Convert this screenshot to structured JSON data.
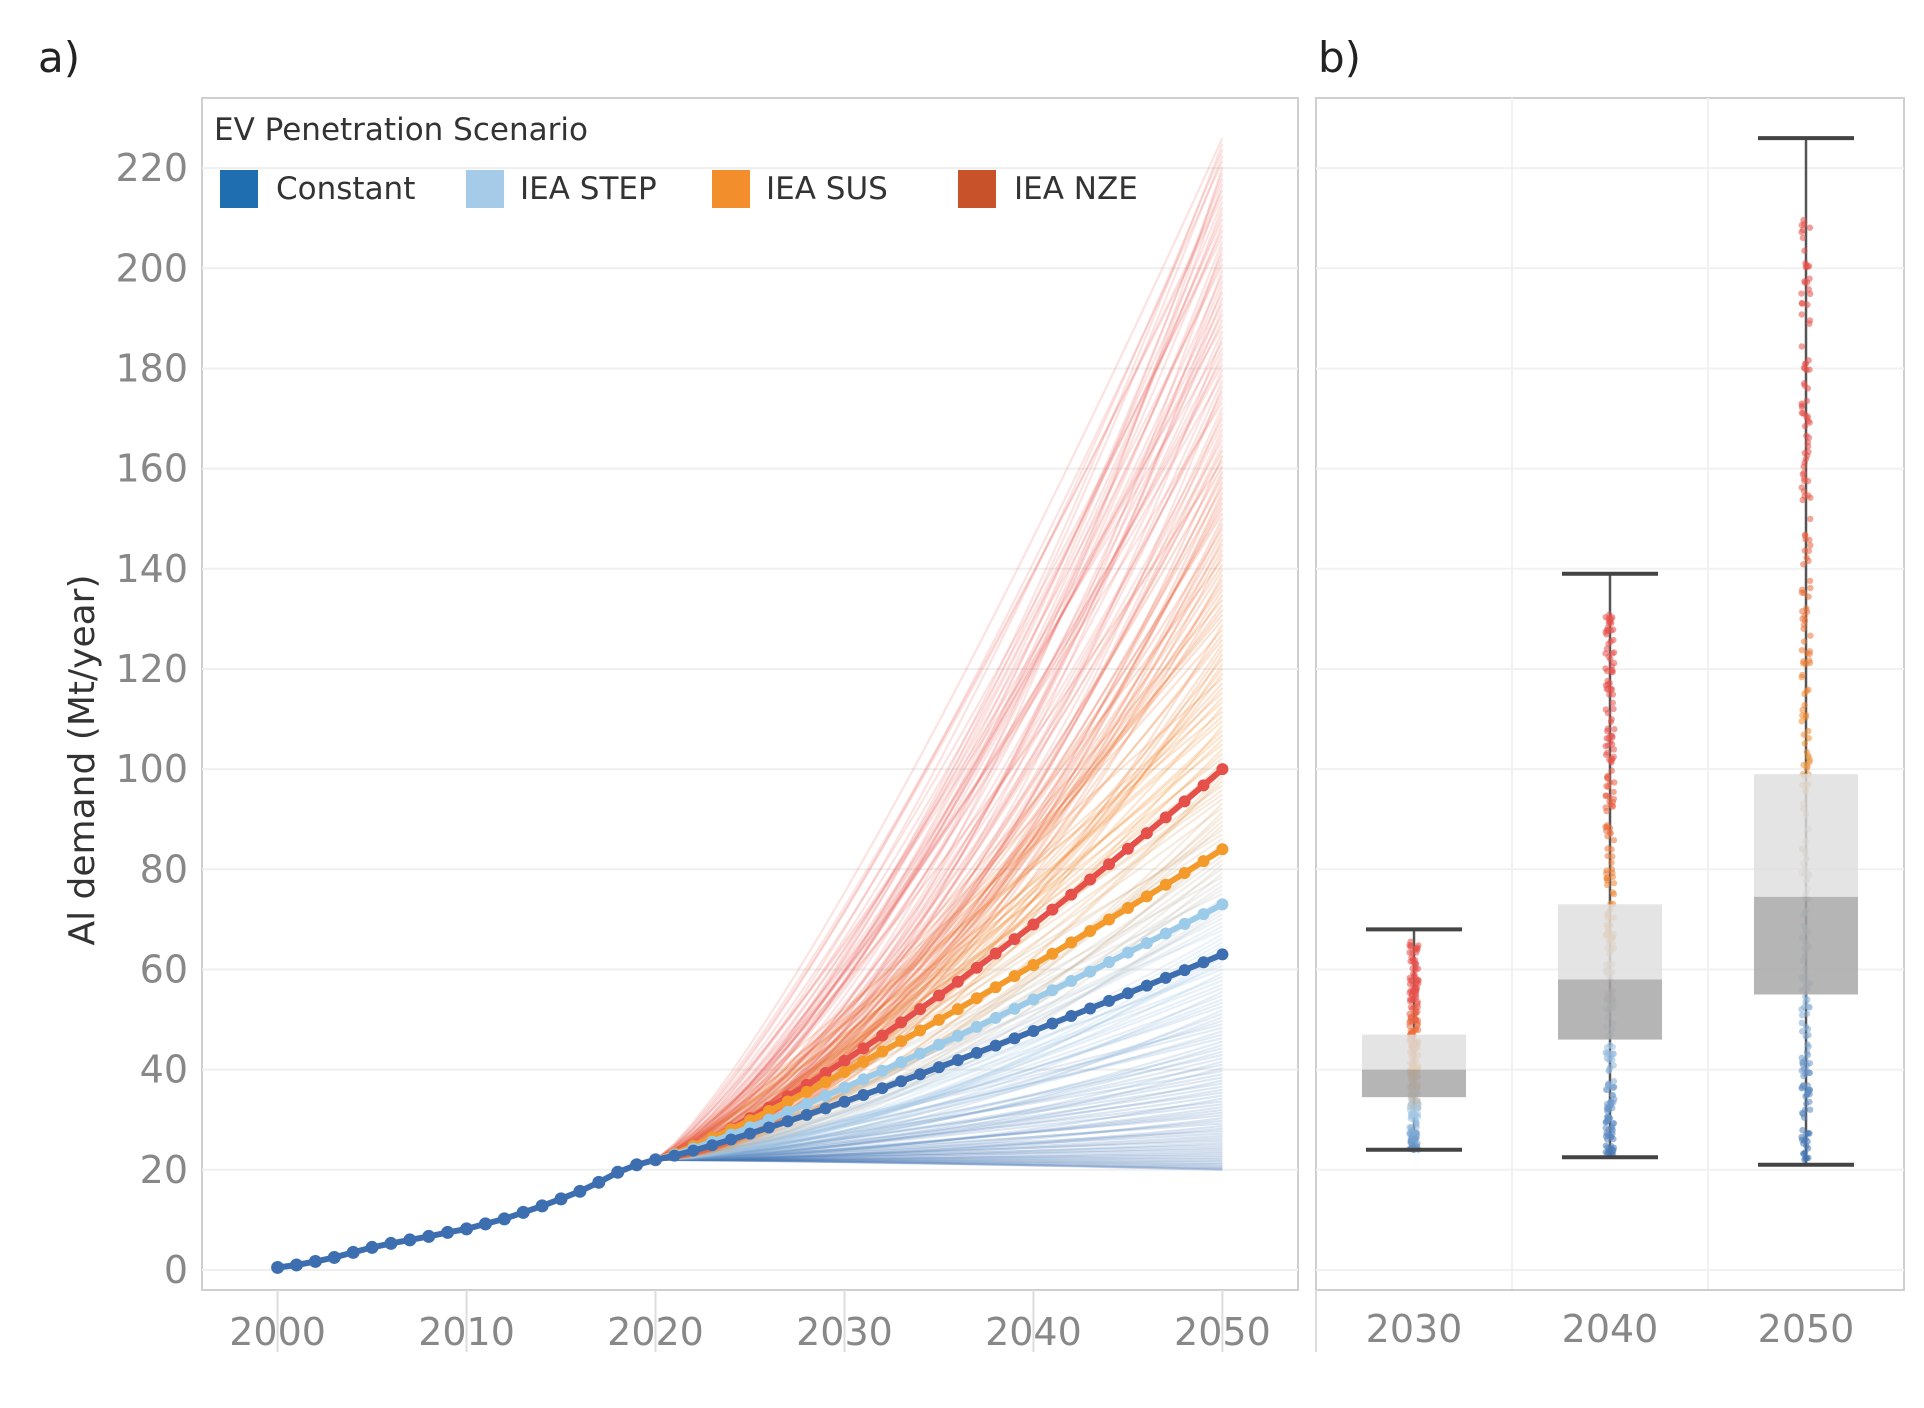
{
  "figure": {
    "panel_a_label": "a)",
    "panel_b_label": "b)"
  },
  "colors": {
    "constant": "#1f6fb0",
    "iea_step": "#a6cbe8",
    "iea_sus": "#f28e2b",
    "iea_nze": "#c8532a",
    "mean_constant": "#3d6fb0",
    "mean_step": "#9ccbea",
    "mean_sus": "#f39a2a",
    "mean_nze": "#e5504a",
    "box_upper": "#dedede",
    "box_lower": "#a8a8a8"
  },
  "chart_data": [
    {
      "type": "line",
      "title": "",
      "xlabel": "",
      "ylabel": "Al demand (Mt/year)",
      "xlim": [
        1996,
        2054
      ],
      "ylim": [
        -4,
        234
      ],
      "x_ticks": [
        2000,
        2010,
        2020,
        2030,
        2040,
        2050
      ],
      "x_tick_labels": [
        "2000",
        "2010",
        "2020",
        "2030",
        "2040",
        "2050"
      ],
      "y_ticks": [
        0,
        20,
        40,
        60,
        80,
        100,
        120,
        140,
        160,
        180,
        200,
        220
      ],
      "y_tick_labels": [
        "0",
        "20",
        "40",
        "60",
        "80",
        "100",
        "120",
        "140",
        "160",
        "180",
        "200",
        "220"
      ],
      "legend": {
        "title": "EV Penetration Scenario",
        "placement": "top-left",
        "entries": [
          {
            "label": "Constant",
            "color_key": "constant"
          },
          {
            "label": "IEA STEP",
            "color_key": "iea_step"
          },
          {
            "label": "IEA SUS",
            "color_key": "iea_sus"
          },
          {
            "label": "IEA NZE",
            "color_key": "iea_nze"
          }
        ]
      },
      "historical": {
        "x": [
          2000,
          2001,
          2002,
          2003,
          2004,
          2005,
          2006,
          2007,
          2008,
          2009,
          2010,
          2011,
          2012,
          2013,
          2014,
          2015,
          2016,
          2017,
          2018,
          2019,
          2020
        ],
        "y": [
          0.5,
          1.0,
          1.7,
          2.5,
          3.5,
          4.5,
          5.3,
          6.0,
          6.7,
          7.5,
          8.2,
          9.2,
          10.2,
          11.5,
          12.8,
          14.2,
          15.7,
          17.5,
          19.5,
          21.0,
          22.0
        ]
      },
      "projection_start": {
        "x": 2020,
        "y": 22
      },
      "ensemble": {
        "count": 240,
        "end_min": 20,
        "end_max": 226
      },
      "series": [
        {
          "name": "Constant",
          "color_key": "mean_constant",
          "end_value": 63,
          "curvature": 1.15
        },
        {
          "name": "IEA STEP",
          "color_key": "mean_step",
          "end_value": 73,
          "curvature": 1.15
        },
        {
          "name": "IEA SUS",
          "color_key": "mean_sus",
          "end_value": 84,
          "curvature": 1.15
        },
        {
          "name": "IEA NZE",
          "color_key": "mean_nze",
          "end_value": 100,
          "curvature": 1.25
        }
      ]
    },
    {
      "type": "box",
      "categories": [
        "2030",
        "2040",
        "2050"
      ],
      "ylim": [
        -4,
        234
      ],
      "boxes": [
        {
          "category": "2030",
          "whisker_low": 24,
          "q1": 34.5,
          "median": 40,
          "q3": 47,
          "whisker_high": 68,
          "points_low": 24,
          "points_high": 66
        },
        {
          "category": "2040",
          "whisker_low": 22.5,
          "q1": 46,
          "median": 58,
          "q3": 73,
          "whisker_high": 139,
          "points_low": 23,
          "points_high": 132
        },
        {
          "category": "2050",
          "whisker_low": 21,
          "q1": 55,
          "median": 74.5,
          "q3": 99,
          "whisker_high": 226,
          "points_low": 22,
          "points_high": 210
        }
      ]
    }
  ]
}
